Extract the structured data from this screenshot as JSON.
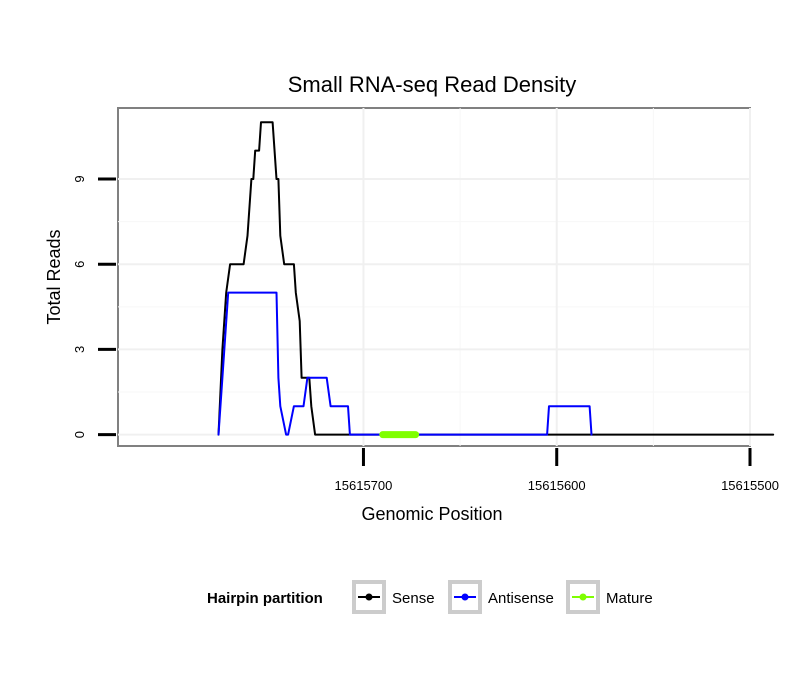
{
  "chart_data": {
    "type": "line",
    "title": "Small RNA-seq Read Density",
    "xlabel": "Genomic Position",
    "ylabel": "Total Reads",
    "x_reversed": true,
    "xlim": [
      15615827,
      15615500
    ],
    "ylim": [
      -0.4,
      11.5
    ],
    "x_ticks": [
      15615700,
      15615600,
      15615500
    ],
    "x_tick_labels": [
      "15615700",
      "15615600",
      "15615500"
    ],
    "y_ticks": [
      0,
      3,
      6,
      9
    ],
    "y_tick_labels": [
      "0",
      "3",
      "6",
      "9"
    ],
    "grid": true,
    "legend": {
      "title": "Hairpin partition",
      "position": "bottom",
      "entries": [
        {
          "label": "Sense",
          "color": "#000000"
        },
        {
          "label": "Antisense",
          "color": "#0000ff"
        },
        {
          "label": "Mature",
          "color": "#7fff00"
        }
      ]
    },
    "series": [
      {
        "name": "Sense",
        "color": "#000000",
        "x": [
          15615775,
          15615773,
          15615772,
          15615771,
          15615769,
          15615762,
          15615760,
          15615758,
          15615757,
          15615756,
          15615754,
          15615753,
          15615752,
          15615750,
          15615749,
          15615748,
          15615747,
          15615745,
          15615744,
          15615743,
          15615741,
          15615740,
          15615739,
          15615737,
          15615736,
          15615735,
          15615733,
          15615732,
          15615731,
          15615730,
          15615728,
          15615727,
          15615725,
          15615723,
          15615722,
          15615720,
          15615719,
          15615717,
          15615488
        ],
        "y": [
          0,
          3,
          4,
          5,
          6,
          6,
          7,
          9,
          9,
          10,
          10,
          11,
          11,
          11,
          11,
          11,
          11,
          9,
          9,
          7,
          6,
          6,
          6,
          6,
          6,
          5,
          4,
          2,
          2,
          2,
          2,
          1,
          0,
          0,
          0,
          0,
          0,
          0,
          0
        ]
      },
      {
        "name": "Antisense",
        "color": "#0000ff",
        "x": [
          15615775,
          15615773,
          15615770,
          15615745,
          15615744,
          15615743,
          15615740,
          15615739,
          15615736,
          15615732,
          15615731,
          15615729,
          15615727,
          15615719,
          15615717,
          15615708,
          15615707,
          15615605,
          15615604,
          15615583,
          15615582
        ],
        "y": [
          0,
          2,
          5,
          5,
          2,
          1,
          0,
          0,
          1,
          1,
          1,
          2,
          2,
          2,
          1,
          1,
          0,
          0,
          1,
          1,
          0
        ]
      },
      {
        "name": "Mature",
        "color": "#7fff00",
        "x": [
          15615690,
          15615673
        ],
        "y": [
          0,
          0
        ]
      }
    ]
  }
}
